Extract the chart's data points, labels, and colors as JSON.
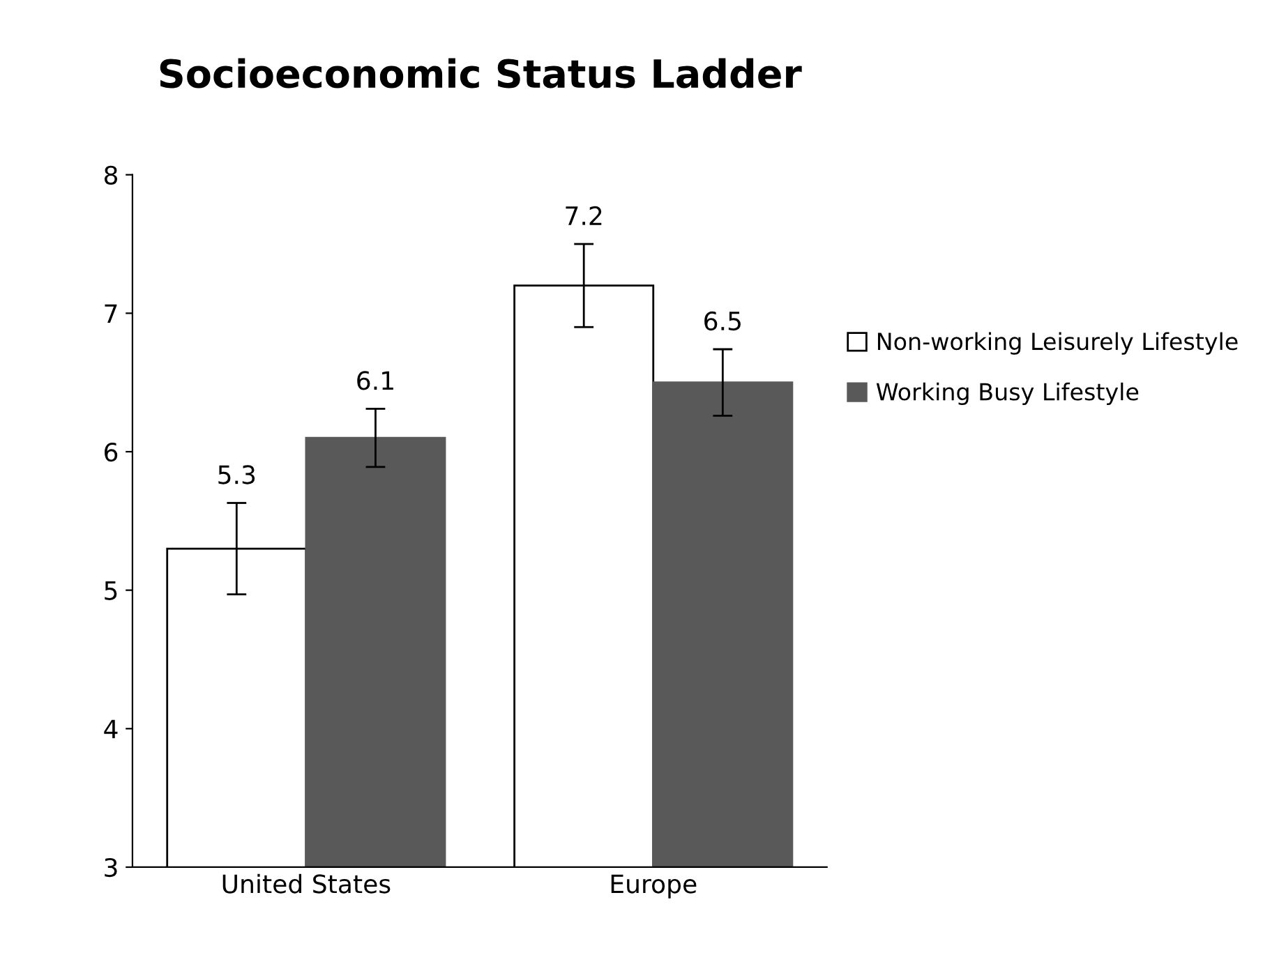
{
  "chart_data": {
    "type": "bar",
    "title": "Socioeconomic Status Ladder",
    "categories": [
      "United States",
      "Europe"
    ],
    "series": [
      {
        "name": "Non-working Leisurely Lifestyle",
        "color": "#ffffff",
        "values": [
          5.3,
          7.2
        ],
        "errors": [
          0.33,
          0.3
        ]
      },
      {
        "name": "Working Busy Lifestyle",
        "color": "#595959",
        "values": [
          6.1,
          6.5
        ],
        "errors": [
          0.21,
          0.24
        ]
      }
    ],
    "ylim": [
      3,
      8
    ],
    "yticks": [
      3,
      4,
      5,
      6,
      7,
      8
    ],
    "grid": false,
    "legend": "right",
    "data_labels": true
  }
}
